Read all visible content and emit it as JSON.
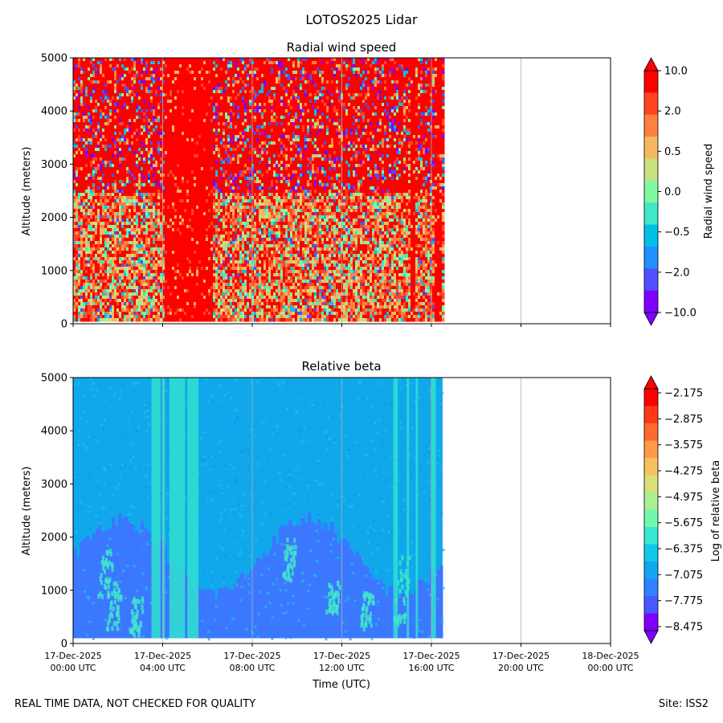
{
  "title": "LOTOS2025 Lidar",
  "footer_left": "REAL TIME DATA, NOT CHECKED FOR QUALITY",
  "footer_right": "Site: ISS2",
  "chart_data": [
    {
      "type": "heatmap",
      "title": "Radial wind speed",
      "ylabel": "Altitude (meters)",
      "xlabel": "",
      "ylim": [
        0,
        5000
      ],
      "yticks": [
        "0",
        "1000",
        "2000",
        "3000",
        "4000",
        "5000"
      ],
      "xlim_hours": [
        0,
        24
      ],
      "data_end_hour": 16.5,
      "data_min_altitude": 100,
      "colorbar": {
        "label": "Radial wind speed",
        "tick_labels": [
          "10.0",
          "2.0",
          "0.5",
          "0.0",
          "−0.5",
          "−2.0",
          "−10.0"
        ],
        "colors": [
          "#ff0000",
          "#ff4422",
          "#ff8040",
          "#f4b860",
          "#c8e080",
          "#80f8a0",
          "#40e8c8",
          "#00c0e8",
          "#2090ff",
          "#5050ff",
          "#8000ff"
        ],
        "extend": "both"
      },
      "description_levels": {
        "high_altitude_dominant": "red with purple/blue speckle",
        "low_altitude": "orange/green/cyan mix"
      }
    },
    {
      "type": "heatmap",
      "title": "Relative beta",
      "ylabel": "Altitude (meters)",
      "xlabel": "Time (UTC)",
      "ylim": [
        0,
        5000
      ],
      "yticks": [
        "0",
        "1000",
        "2000",
        "3000",
        "4000",
        "5000"
      ],
      "xlim_hours": [
        0,
        24
      ],
      "data_end_hour": 16.5,
      "data_min_altitude": 100,
      "xtick_hours": [
        0,
        4,
        8,
        12,
        16,
        20,
        24
      ],
      "xtick_labels": [
        [
          "17-Dec-2025",
          "00:00 UTC"
        ],
        [
          "17-Dec-2025",
          "04:00 UTC"
        ],
        [
          "17-Dec-2025",
          "08:00 UTC"
        ],
        [
          "17-Dec-2025",
          "12:00 UTC"
        ],
        [
          "17-Dec-2025",
          "16:00 UTC"
        ],
        [
          "17-Dec-2025",
          "20:00 UTC"
        ],
        [
          "18-Dec-2025",
          "00:00 UTC"
        ]
      ],
      "colorbar": {
        "label": "Log of relative beta",
        "tick_labels": [
          "−2.175",
          "−2.875",
          "−3.575",
          "−4.275",
          "−4.975",
          "−5.675",
          "−6.375",
          "−7.075",
          "−7.775",
          "−8.475"
        ],
        "colors": [
          "#ff0000",
          "#ff3818",
          "#ff6a30",
          "#ff9a48",
          "#f8c060",
          "#d8e078",
          "#a8f090",
          "#70f8b0",
          "#38e8d0",
          "#10c8e8",
          "#10a8f0",
          "#3080ff",
          "#4858ff",
          "#8000ff"
        ],
        "extend": "both"
      }
    }
  ]
}
